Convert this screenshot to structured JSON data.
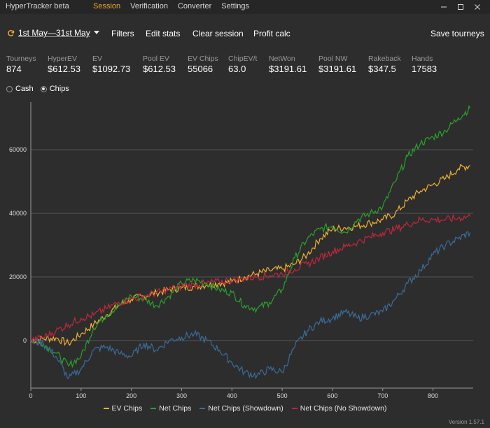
{
  "app": {
    "title": "HyperTracker beta",
    "version": "Version 1.57.1"
  },
  "menu": {
    "items": [
      {
        "label": "Session",
        "active": true
      },
      {
        "label": "Verification",
        "active": false
      },
      {
        "label": "Converter",
        "active": false
      },
      {
        "label": "Settings",
        "active": false
      }
    ]
  },
  "window_controls": [
    "minimize-icon",
    "maximize-icon",
    "close-icon"
  ],
  "toolbar": {
    "date_range": "1st May—31st May",
    "filters": "Filters",
    "edit_stats": "Edit stats",
    "clear_session": "Clear session",
    "profit_calc": "Profit calc",
    "save_tourneys": "Save tourneys"
  },
  "stats": [
    {
      "key": "Tourneys",
      "value": "874"
    },
    {
      "key": "HyperEV",
      "value": "$612.53"
    },
    {
      "key": "EV",
      "value": "$1092.73"
    },
    {
      "key": "Pool EV",
      "value": "$612.53"
    },
    {
      "key": "EV Chips",
      "value": "55066"
    },
    {
      "key": "ChipEV/t",
      "value": "63.0"
    },
    {
      "key": "NetWon",
      "value": "$3191.61"
    },
    {
      "key": "Pool NW",
      "value": "$3191.61"
    },
    {
      "key": "Rakeback",
      "value": "$347.5"
    },
    {
      "key": "Hands",
      "value": "17583"
    }
  ],
  "mode": {
    "options": [
      {
        "label": "Cash",
        "selected": false
      },
      {
        "label": "Chips",
        "selected": true
      }
    ]
  },
  "chart_data": {
    "type": "line",
    "xlim": [
      0,
      880
    ],
    "ylim": [
      -15000,
      75000
    ],
    "x_ticks": [
      0,
      100,
      200,
      300,
      400,
      500,
      600,
      700,
      800
    ],
    "y_ticks": [
      0,
      20000,
      40000,
      60000
    ],
    "grid": true,
    "legend": "bottom",
    "x": [
      0,
      25,
      50,
      75,
      100,
      125,
      150,
      175,
      200,
      225,
      250,
      275,
      300,
      325,
      350,
      375,
      400,
      425,
      450,
      475,
      500,
      525,
      550,
      575,
      600,
      625,
      650,
      675,
      700,
      725,
      750,
      775,
      800,
      825,
      850,
      874
    ],
    "series": [
      {
        "name": "EV Chips",
        "color": "#f0b232",
        "values": [
          0,
          500,
          800,
          -1000,
          2000,
          5000,
          8000,
          11000,
          13000,
          14000,
          15000,
          16000,
          16500,
          17000,
          17500,
          18000,
          18500,
          20000,
          21000,
          22000,
          22500,
          24000,
          27000,
          32000,
          35000,
          35500,
          36000,
          37000,
          38000,
          40000,
          44000,
          47000,
          49000,
          51000,
          54000,
          55066
        ]
      },
      {
        "name": "Net Chips",
        "color": "#2ba02b",
        "values": [
          0,
          -1000,
          -4000,
          -8000,
          -5000,
          4000,
          8000,
          11000,
          14000,
          13000,
          11000,
          14000,
          18000,
          19000,
          18000,
          16000,
          15000,
          11000,
          10000,
          12000,
          16000,
          26000,
          32000,
          35000,
          36000,
          34000,
          38000,
          40000,
          42000,
          50000,
          58000,
          62000,
          64000,
          66000,
          70000,
          73000
        ]
      },
      {
        "name": "Net Chips (Showdown)",
        "color": "#3a6d9a",
        "values": [
          0,
          -1000,
          -5000,
          -12000,
          -9000,
          -3000,
          -2000,
          -4000,
          -5000,
          -1000,
          -3000,
          0,
          1000,
          2000,
          0,
          -3000,
          -7000,
          -10000,
          -11000,
          -9000,
          -10000,
          -2000,
          3000,
          6000,
          7000,
          9000,
          7000,
          8000,
          9000,
          13000,
          18000,
          22000,
          27000,
          30000,
          32000,
          34000
        ]
      },
      {
        "name": "Net Chips (No Showdown)",
        "color": "#c0283c",
        "values": [
          0,
          1000,
          3000,
          5000,
          7000,
          8000,
          10000,
          12000,
          13000,
          14000,
          15000,
          16000,
          17000,
          17500,
          18000,
          18500,
          19000,
          19500,
          20000,
          20500,
          21000,
          22500,
          24000,
          26000,
          28000,
          29500,
          31000,
          32500,
          34000,
          35000,
          36500,
          38000,
          38000,
          38000,
          38500,
          39000
        ]
      }
    ]
  }
}
